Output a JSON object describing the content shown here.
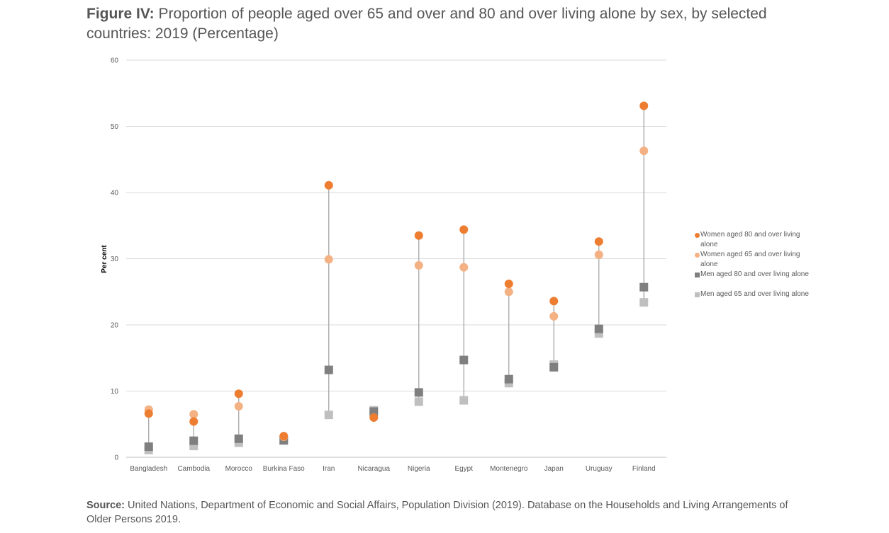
{
  "header": {
    "figure_label": "Figure IV:",
    "title": "Proportion of people aged over 65 and over and 80 and over living alone by sex, by selected countries: 2019 (Percentage)"
  },
  "footer": {
    "source_label": "Source:",
    "source_text": "United Nations, Department of Economic and Social Affairs, Population Division (2019). Database on the Households and Living Arrangements of Older Persons 2019."
  },
  "chart_data": {
    "type": "scatter",
    "title": "",
    "xlabel": "",
    "ylabel": "Per cent",
    "ylim": [
      0,
      60
    ],
    "yticks": [
      0,
      10,
      20,
      30,
      40,
      50,
      60
    ],
    "grid": true,
    "legend_position": "right",
    "categories": [
      "Bangladesh",
      "Cambodia",
      "Morocco",
      "Burkina Faso",
      "Iran",
      "Nicaragua",
      "Nigeria",
      "Egypt",
      "Montenegro",
      "Japan",
      "Uruguay",
      "Finland"
    ],
    "series": [
      {
        "name": "Women aged 80 and over living alone",
        "marker": "circle",
        "color": "#ED7D31",
        "values": [
          6.6,
          5.4,
          9.6,
          3.2,
          41.1,
          6.0,
          33.5,
          34.4,
          26.2,
          23.6,
          32.6,
          53.1
        ]
      },
      {
        "name": "Women aged 65 and over living alone",
        "marker": "circle",
        "color": "#F4B183",
        "values": [
          7.2,
          6.5,
          7.7,
          3.1,
          29.9,
          6.0,
          29.0,
          28.7,
          25.0,
          21.3,
          30.6,
          46.3
        ]
      },
      {
        "name": "Men aged 80 and over living alone",
        "marker": "square",
        "color": "#7F7F7F",
        "values": [
          1.6,
          2.5,
          2.8,
          2.6,
          13.2,
          6.9,
          9.8,
          14.7,
          11.8,
          13.6,
          19.4,
          25.7
        ]
      },
      {
        "name": "Men aged 65 and over living alone",
        "marker": "square",
        "color": "#BFBFBF",
        "values": [
          1.1,
          1.7,
          2.2,
          2.5,
          6.4,
          7.1,
          8.4,
          8.6,
          11.2,
          14.0,
          18.7,
          23.4
        ]
      }
    ]
  }
}
